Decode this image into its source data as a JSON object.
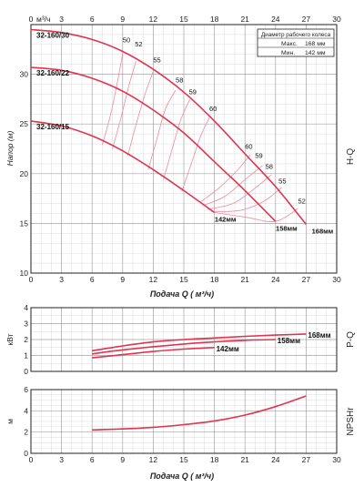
{
  "colors": {
    "curve": "#e0344f",
    "curve_light": "#f08aa0",
    "grid": "#9a9a9a",
    "axis": "#222222"
  },
  "chart_data": [
    {
      "type": "line",
      "id": "hq",
      "x_unit_label": "м³/ч",
      "ylabel": "Напор (м)",
      "xlabel": "Подача Q ( м³/ч)",
      "side_label": "H-Q",
      "xlim": [
        0,
        30
      ],
      "ylim": [
        10,
        35
      ],
      "xticks": [
        0,
        3,
        6,
        9,
        12,
        15,
        18,
        21,
        24,
        27,
        30
      ],
      "yticks": [
        10,
        15,
        20,
        25,
        30
      ],
      "grid": true,
      "legend_box": {
        "title": "Диаметр рабочего колеса",
        "rows": [
          {
            "label": "Макс.",
            "value": "168 мм"
          },
          {
            "label": "Мин.",
            "value": "142 мм"
          }
        ]
      },
      "series": [
        {
          "name": "32-160/30",
          "points": [
            [
              0,
              34.5
            ],
            [
              3,
              34.2
            ],
            [
              6,
              33.5
            ],
            [
              9,
              32.3
            ],
            [
              12,
              30.5
            ],
            [
              15,
              28.2
            ],
            [
              18,
              25.3
            ],
            [
              21,
              22.0
            ],
            [
              24,
              18.7
            ],
            [
              27,
              14.9
            ]
          ]
        },
        {
          "name": "32-160/22",
          "points": [
            [
              0,
              30.7
            ],
            [
              3,
              30.4
            ],
            [
              6,
              29.6
            ],
            [
              9,
              28.3
            ],
            [
              12,
              26.4
            ],
            [
              15,
              24.1
            ],
            [
              18,
              21.2
            ],
            [
              21,
              18.3
            ],
            [
              24,
              15.2
            ]
          ]
        },
        {
          "name": "32-160/15",
          "points": [
            [
              0,
              25.3
            ],
            [
              3,
              24.8
            ],
            [
              6,
              23.8
            ],
            [
              9,
              22.3
            ],
            [
              12,
              20.4
            ],
            [
              15,
              18.3
            ],
            [
              18,
              16.1
            ]
          ]
        }
      ],
      "curve_end_labels": [
        "168мм",
        "158мм",
        "142мм"
      ],
      "efficiency_labels": [
        {
          "text": "50",
          "x": 9,
          "y": 33.2
        },
        {
          "text": "52",
          "x": 10.2,
          "y": 32.8
        },
        {
          "text": "55",
          "x": 12,
          "y": 31.2
        },
        {
          "text": "58",
          "x": 14.2,
          "y": 29.2
        },
        {
          "text": "59",
          "x": 15.5,
          "y": 28.0
        },
        {
          "text": "60",
          "x": 17.5,
          "y": 26.3
        },
        {
          "text": "60",
          "x": 21,
          "y": 22.5
        },
        {
          "text": "59",
          "x": 22,
          "y": 21.6
        },
        {
          "text": "58",
          "x": 23,
          "y": 20.5
        },
        {
          "text": "55",
          "x": 24.3,
          "y": 19.0
        },
        {
          "text": "52",
          "x": 26.2,
          "y": 17.0
        }
      ],
      "efficiency_curves": [
        [
          [
            7.0,
            22.9
          ],
          [
            7.8,
            25.9
          ],
          [
            8.5,
            29.3
          ],
          [
            9.0,
            32.1
          ]
        ],
        [
          [
            8.0,
            22.5
          ],
          [
            8.8,
            25.5
          ],
          [
            9.6,
            28.8
          ],
          [
            10.3,
            31.3
          ]
        ],
        [
          [
            9.5,
            21.8
          ],
          [
            10.3,
            24.9
          ],
          [
            11.2,
            28.0
          ],
          [
            12.0,
            30.3
          ]
        ],
        [
          [
            11.5,
            20.4
          ],
          [
            12.3,
            23.3
          ],
          [
            13.2,
            26.5
          ],
          [
            14.2,
            28.4
          ]
        ],
        [
          [
            13.0,
            19.4
          ],
          [
            13.8,
            22.3
          ],
          [
            14.7,
            25.4
          ],
          [
            15.6,
            27.5
          ]
        ],
        [
          [
            14.8,
            18.2
          ],
          [
            15.7,
            20.9
          ],
          [
            16.7,
            23.9
          ],
          [
            17.6,
            25.8
          ]
        ],
        [
          [
            16.7,
            17.2
          ],
          [
            18.5,
            18.6
          ],
          [
            20.3,
            20.4
          ],
          [
            21.5,
            21.9
          ]
        ],
        [
          [
            16.9,
            16.8
          ],
          [
            19.0,
            17.7
          ],
          [
            21.0,
            19.4
          ],
          [
            22.7,
            20.8
          ]
        ],
        [
          [
            17.3,
            16.4
          ],
          [
            19.8,
            17.0
          ],
          [
            21.8,
            18.4
          ],
          [
            23.6,
            19.9
          ]
        ],
        [
          [
            17.7,
            16.2
          ],
          [
            20.5,
            16.3
          ],
          [
            22.8,
            17.2
          ],
          [
            24.6,
            18.6
          ]
        ],
        [
          [
            18.0,
            16.1
          ],
          [
            21.2,
            15.6
          ],
          [
            24.0,
            15.2
          ],
          [
            26.2,
            16.5
          ]
        ]
      ]
    },
    {
      "type": "line",
      "id": "pq",
      "ylabel": "кВт",
      "side_label": "P-Q",
      "xlim": [
        0,
        30
      ],
      "ylim": [
        0,
        4
      ],
      "xticks": [
        0,
        3,
        6,
        9,
        12,
        15,
        18,
        21,
        24,
        27,
        30
      ],
      "yticks": [
        0,
        1,
        2,
        3,
        4
      ],
      "grid": true,
      "series": [
        {
          "name": "168мм",
          "points": [
            [
              6,
              1.3
            ],
            [
              9,
              1.6
            ],
            [
              12,
              1.85
            ],
            [
              15,
              2.0
            ],
            [
              18,
              2.1
            ],
            [
              21,
              2.2
            ],
            [
              24,
              2.28
            ],
            [
              27,
              2.35
            ]
          ]
        },
        {
          "name": "158мм",
          "points": [
            [
              6,
              1.1
            ],
            [
              9,
              1.35
            ],
            [
              12,
              1.55
            ],
            [
              15,
              1.72
            ],
            [
              18,
              1.85
            ],
            [
              21,
              1.95
            ],
            [
              24,
              2.0
            ]
          ]
        },
        {
          "name": "142мм",
          "points": [
            [
              6,
              0.85
            ],
            [
              9,
              1.05
            ],
            [
              12,
              1.25
            ],
            [
              15,
              1.4
            ],
            [
              18,
              1.5
            ]
          ]
        }
      ]
    },
    {
      "type": "line",
      "id": "npsh",
      "ylabel": "м",
      "side_label": "NPSHr",
      "xlabel": "Подача Q ( м³/ч)",
      "xlim": [
        0,
        30
      ],
      "ylim": [
        0,
        6
      ],
      "xticks": [
        0,
        3,
        6,
        9,
        12,
        15,
        18,
        21,
        24,
        27,
        30
      ],
      "yticks": [
        0,
        2,
        4,
        6
      ],
      "grid": true,
      "series": [
        {
          "name": "",
          "points": [
            [
              6,
              2.2
            ],
            [
              9,
              2.3
            ],
            [
              12,
              2.45
            ],
            [
              15,
              2.7
            ],
            [
              18,
              3.05
            ],
            [
              21,
              3.6
            ],
            [
              24,
              4.4
            ],
            [
              27,
              5.4
            ]
          ]
        }
      ]
    }
  ]
}
